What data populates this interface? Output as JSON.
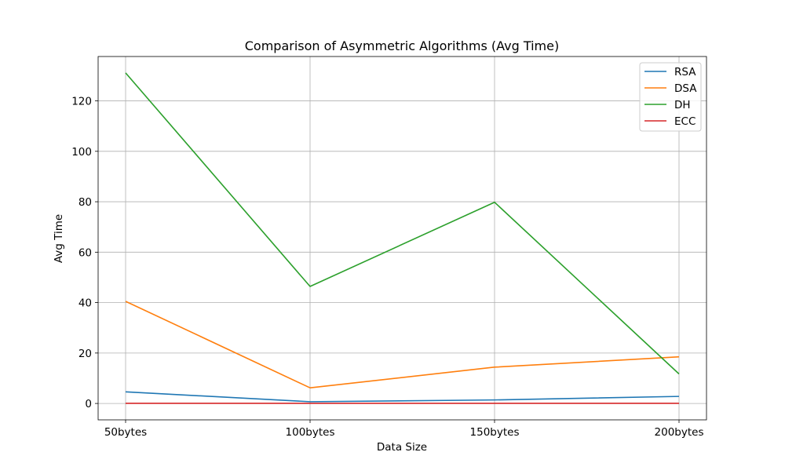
{
  "chart_data": {
    "type": "line",
    "title": "Comparison of Asymmetric Algorithms (Avg Time)",
    "xlabel": "Data Size",
    "ylabel": "Avg Time",
    "categories": [
      "50bytes",
      "100bytes",
      "150bytes",
      "200bytes"
    ],
    "ylim": [
      -6.5,
      137.6
    ],
    "yticks": [
      0,
      20,
      40,
      60,
      80,
      100,
      120
    ],
    "grid": true,
    "legend_position": "top-right",
    "series": [
      {
        "name": "RSA",
        "color": "#1f77b4",
        "values": [
          4.6,
          0.7,
          1.4,
          2.8
        ]
      },
      {
        "name": "DSA",
        "color": "#ff7f0e",
        "values": [
          40.5,
          6.2,
          14.4,
          18.5
        ]
      },
      {
        "name": "DH",
        "color": "#2ca02c",
        "values": [
          131.1,
          46.4,
          79.8,
          11.7
        ]
      },
      {
        "name": "ECC",
        "color": "#d62728",
        "values": [
          0.05,
          0.05,
          0.05,
          0.05
        ]
      }
    ]
  }
}
